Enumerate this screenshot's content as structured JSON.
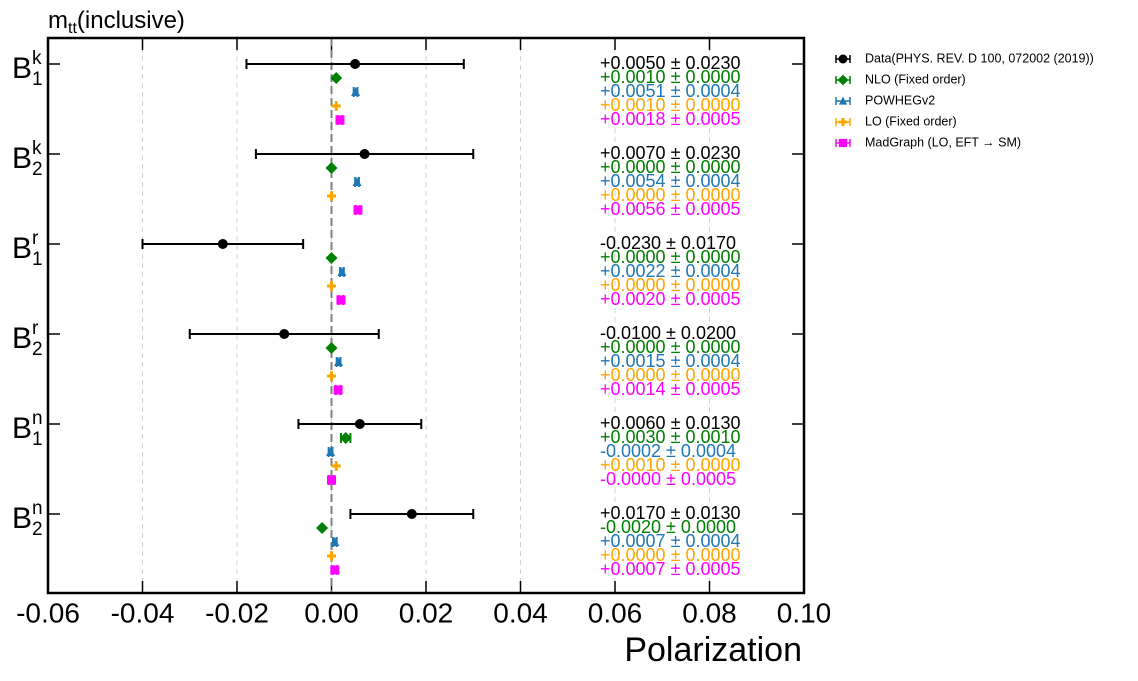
{
  "chart_data": {
    "type": "errorbar",
    "title": {
      "base": "m",
      "sub": "tt",
      "rest": "(inclusive)"
    },
    "x_label": "Polarization",
    "categories": [
      {
        "base": "B",
        "sub": "1",
        "sup": "k"
      },
      {
        "base": "B",
        "sub": "2",
        "sup": "k"
      },
      {
        "base": "B",
        "sub": "1",
        "sup": "r"
      },
      {
        "base": "B",
        "sub": "2",
        "sup": "r"
      },
      {
        "base": "B",
        "sub": "1",
        "sup": "n"
      },
      {
        "base": "B",
        "sub": "2",
        "sup": "n"
      }
    ],
    "xlim": [
      -0.06,
      0.1
    ],
    "xticks": [
      -0.06,
      -0.04,
      -0.02,
      {
        "value": 0,
        "label": "0.00"
      },
      0.02,
      0.04,
      0.06,
      0.08,
      {
        "value": 0.1,
        "label": "0.10"
      }
    ],
    "grid": true,
    "legend": "outside right",
    "series": [
      {
        "name": "Data(PHYS. REV. D 100, 072002 (2019))",
        "color": "#000000",
        "marker": "circle",
        "values": [
          0.005,
          0.007,
          -0.023,
          -0.01,
          0.006,
          0.017
        ],
        "errors": [
          0.023,
          0.023,
          0.017,
          0.02,
          0.013,
          0.013
        ],
        "value_labels": [
          "+0.0050 ± 0.0230",
          "+0.0070 ± 0.0230",
          "-0.0230 ± 0.0170",
          "-0.0100 ± 0.0200",
          "+0.0060 ± 0.0130",
          "+0.0170 ± 0.0130"
        ]
      },
      {
        "name": "NLO (Fixed order)",
        "color": "#008000",
        "marker": "diamond",
        "values": [
          0.001,
          0,
          0,
          0,
          0.003,
          -0.002
        ],
        "errors": [
          0,
          0,
          0,
          0,
          0.001,
          0
        ],
        "value_labels": [
          "+0.0010 ± 0.0000",
          "+0.0000 ± 0.0000",
          "+0.0000 ± 0.0000",
          "+0.0000 ± 0.0000",
          "+0.0030 ± 0.0010",
          "-0.0020 ± 0.0000"
        ]
      },
      {
        "name": "POWHEGv2",
        "color": "#1f77b4",
        "marker": "triangle",
        "values": [
          0.0051,
          0.0054,
          0.0022,
          0.0015,
          -0.0002,
          0.0007
        ],
        "errors": [
          0.0004,
          0.0004,
          0.0004,
          0.0004,
          0.0004,
          0.0004
        ],
        "value_labels": [
          "+0.0051 ± 0.0004",
          "+0.0054 ± 0.0004",
          "+0.0022 ± 0.0004",
          "+0.0015 ± 0.0004",
          "-0.0002 ± 0.0004",
          "+0.0007 ± 0.0004"
        ]
      },
      {
        "name": "LO (Fixed order)",
        "color": "#ffa500",
        "marker": "plus",
        "values": [
          0.001,
          0,
          0,
          0,
          0.001,
          0
        ],
        "errors": [
          0,
          0,
          0,
          0,
          0,
          0
        ],
        "value_labels": [
          "+0.0010 ± 0.0000",
          "+0.0000 ± 0.0000",
          "+0.0000 ± 0.0000",
          "+0.0000 ± 0.0000",
          "+0.0010 ± 0.0000",
          "+0.0000 ± 0.0000"
        ]
      },
      {
        "name": "MadGraph (LO, EFT → SM)",
        "color": "#ff00ff",
        "marker": "square",
        "values": [
          0.0018,
          0.0056,
          0.002,
          0.0014,
          0,
          0.0007
        ],
        "errors": [
          0.0005,
          0.0005,
          0.0005,
          0.0005,
          0.0005,
          0.0005
        ],
        "value_labels": [
          "+0.0018 ± 0.0005",
          "+0.0056 ± 0.0005",
          "+0.0020 ± 0.0005",
          "+0.0014 ± 0.0005",
          "-0.0000 ± 0.0005",
          "+0.0007 ± 0.0005"
        ]
      }
    ]
  }
}
